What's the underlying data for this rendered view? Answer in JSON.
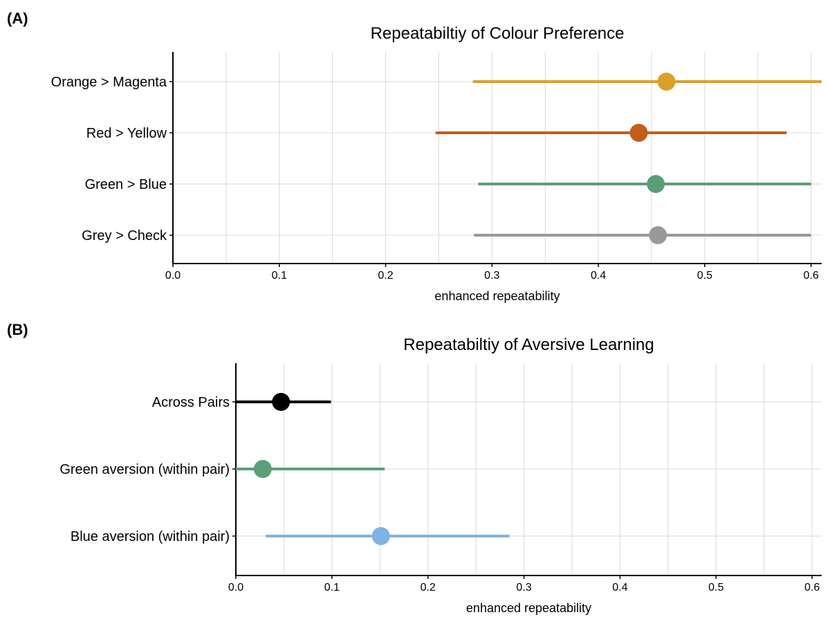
{
  "chart_data": [
    {
      "type": "scatter",
      "panel_label": "(A)",
      "title": "Repeatabiltiy of Colour Preference",
      "xlabel": "enhanced repeatability",
      "ylabel": "",
      "xlim": [
        0,
        0.61
      ],
      "x_ticks": [
        0.0,
        0.1,
        0.2,
        0.3,
        0.4,
        0.5,
        0.6
      ],
      "x_tick_labels": [
        "0.0",
        "0.1",
        "0.2",
        "0.3",
        "0.4",
        "0.5",
        "0.6"
      ],
      "grid": true,
      "legend": "none",
      "categories": [
        "Orange > Magenta",
        "Red > Yellow",
        "Green > Blue",
        "Grey > Check"
      ],
      "series": [
        {
          "category": "Orange > Magenta",
          "estimate": 0.464,
          "lower": 0.282,
          "upper": 0.61,
          "color": "#D9A02A"
        },
        {
          "category": "Red > Yellow",
          "estimate": 0.438,
          "lower": 0.247,
          "upper": 0.577,
          "color": "#C25E1A"
        },
        {
          "category": "Green > Blue",
          "estimate": 0.454,
          "lower": 0.287,
          "upper": 0.6,
          "color": "#5A9F78"
        },
        {
          "category": "Grey > Check",
          "estimate": 0.456,
          "lower": 0.283,
          "upper": 0.6,
          "color": "#999999"
        }
      ]
    },
    {
      "type": "scatter",
      "panel_label": "(B)",
      "title": "Repeatabiltiy of Aversive Learning",
      "xlabel": "enhanced repeatability",
      "ylabel": "",
      "xlim": [
        0,
        0.61
      ],
      "x_ticks": [
        0.0,
        0.1,
        0.2,
        0.3,
        0.4,
        0.5,
        0.6
      ],
      "x_tick_labels": [
        "0.0",
        "0.1",
        "0.2",
        "0.3",
        "0.4",
        "0.5",
        "0.6"
      ],
      "grid": true,
      "legend": "none",
      "categories": [
        "Across Pairs",
        "Green aversion (within pair)",
        "Blue aversion (within pair)"
      ],
      "series": [
        {
          "category": "Across Pairs",
          "estimate": 0.047,
          "lower": 0.0,
          "upper": 0.099,
          "color": "#000000"
        },
        {
          "category": "Green aversion (within pair)",
          "estimate": 0.028,
          "lower": 0.0,
          "upper": 0.155,
          "color": "#5A9F78"
        },
        {
          "category": "Blue aversion (within pair)",
          "estimate": 0.151,
          "lower": 0.031,
          "upper": 0.285,
          "color": "#7DB4E3"
        }
      ]
    }
  ]
}
